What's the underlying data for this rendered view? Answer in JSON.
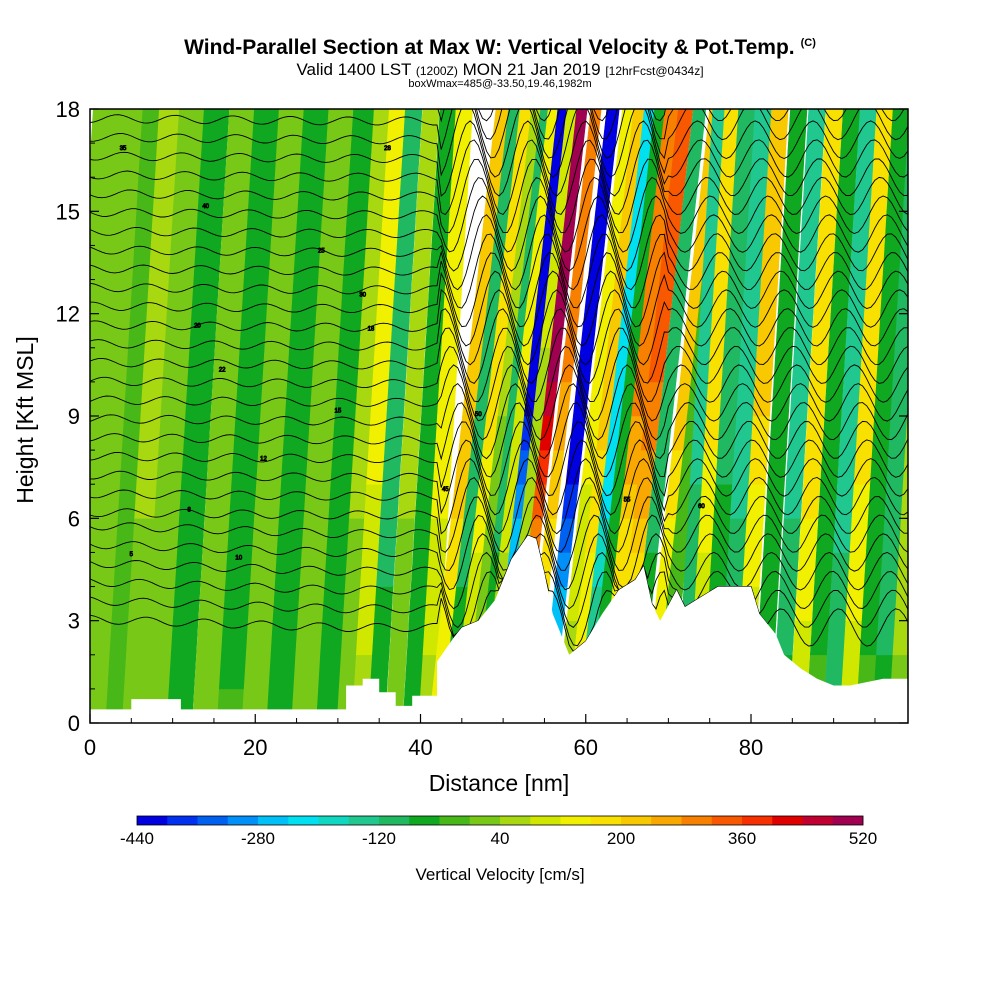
{
  "chart_data": {
    "type": "heatmap",
    "title": "Wind-Parallel Section at Max W: Vertical Velocity & Pot.Temp.",
    "title_mark": "(C)",
    "subtitle_main": "Valid 1400 LST",
    "subtitle_utc": "(1200Z)",
    "subtitle_date": "MON 21 Jan 2019",
    "subtitle_fcst": "[12hrFcst@0434z]",
    "info": "boxWmax=485@-33.50,19.46,1982m",
    "xlabel": "Distance [nm]",
    "ylabel": "Height [Kft MSL]",
    "xlim": [
      0,
      99
    ],
    "ylim": [
      0,
      18
    ],
    "x_ticks": [
      0,
      20,
      40,
      60,
      80
    ],
    "y_ticks": [
      0,
      3,
      6,
      9,
      12,
      15,
      18
    ],
    "colorbar": {
      "label": "Vertical Velocity [cm/s]",
      "min": -440,
      "max": 520,
      "step": 40,
      "tick_values": [
        -440,
        -280,
        -120,
        40,
        200,
        360,
        520
      ],
      "tick_labels": [
        "-440",
        "-280",
        "-120",
        "40",
        "200",
        "360",
        "520"
      ],
      "colors": [
        "#0000e0",
        "#0030f0",
        "#0060f0",
        "#0090f8",
        "#00c0f8",
        "#00e0f0",
        "#10d8c0",
        "#20c890",
        "#20b860",
        "#10a820",
        "#48b818",
        "#78c818",
        "#a8d810",
        "#d0e800",
        "#f0f000",
        "#f8e000",
        "#f8c800",
        "#f8a800",
        "#f88000",
        "#f85800",
        "#f83000",
        "#e00000",
        "#c00030",
        "#a00050"
      ]
    },
    "terrain_kft": [
      [
        0,
        0.4
      ],
      [
        5,
        0.4
      ],
      [
        5,
        0.7
      ],
      [
        11,
        0.7
      ],
      [
        11,
        0.4
      ],
      [
        31,
        0.4
      ],
      [
        31,
        1.1
      ],
      [
        33,
        1.1
      ],
      [
        33,
        1.3
      ],
      [
        35,
        1.3
      ],
      [
        35,
        0.9
      ],
      [
        37,
        0.9
      ],
      [
        37,
        0.5
      ],
      [
        39,
        0.5
      ],
      [
        39,
        0.8
      ],
      [
        42,
        0.8
      ],
      [
        42,
        1.8
      ],
      [
        44,
        2.5
      ],
      [
        45,
        2.8
      ],
      [
        47,
        3.0
      ],
      [
        49,
        3.6
      ],
      [
        51,
        4.8
      ],
      [
        53,
        5.5
      ],
      [
        54,
        5.4
      ],
      [
        55,
        4.4
      ],
      [
        56,
        3.2
      ],
      [
        57,
        2.6
      ],
      [
        58,
        2.0
      ],
      [
        60,
        2.4
      ],
      [
        62,
        3.2
      ],
      [
        64,
        3.9
      ],
      [
        66,
        4.2
      ],
      [
        67,
        4.6
      ],
      [
        68,
        3.5
      ],
      [
        69,
        3.0
      ],
      [
        71,
        3.9
      ],
      [
        72,
        3.4
      ],
      [
        74,
        3.7
      ],
      [
        76,
        4.0
      ],
      [
        78,
        4.0
      ],
      [
        80,
        4.0
      ],
      [
        81,
        3.2
      ],
      [
        83,
        2.6
      ],
      [
        84,
        2.0
      ],
      [
        86,
        1.6
      ],
      [
        88,
        1.3
      ],
      [
        90,
        1.1
      ],
      [
        92,
        1.1
      ],
      [
        94,
        1.2
      ],
      [
        96,
        1.3
      ],
      [
        99,
        1.3
      ]
    ],
    "w_columns_cms": [
      [
        1,
        20
      ],
      [
        3,
        -40
      ],
      [
        5,
        40
      ],
      [
        8,
        0
      ],
      [
        11,
        -80
      ],
      [
        14,
        30
      ],
      [
        17,
        -60
      ],
      [
        20,
        20
      ],
      [
        23,
        -80
      ],
      [
        26,
        30
      ],
      [
        29,
        -70
      ],
      [
        31,
        40
      ],
      [
        33,
        120
      ],
      [
        35,
        -100
      ],
      [
        37,
        40
      ],
      [
        39,
        -80
      ],
      [
        41,
        120
      ],
      [
        43,
        220
      ],
      [
        44.5,
        -120
      ],
      [
        46,
        160
      ],
      [
        47.5,
        40
      ],
      [
        48.5,
        -120
      ],
      [
        50,
        120
      ],
      [
        51.5,
        -440
      ],
      [
        52.5,
        80
      ],
      [
        54,
        520
      ],
      [
        55,
        280
      ],
      [
        56.5,
        -440
      ],
      [
        58,
        120
      ],
      [
        59.5,
        200
      ],
      [
        61,
        -240
      ],
      [
        62.5,
        -80
      ],
      [
        64,
        280
      ],
      [
        66,
        320
      ],
      [
        67.5,
        -120
      ],
      [
        69,
        200
      ],
      [
        71,
        -40
      ],
      [
        72.5,
        -140
      ],
      [
        74,
        180
      ],
      [
        76,
        -100
      ],
      [
        78,
        -160
      ],
      [
        80,
        200
      ],
      [
        82,
        -80
      ],
      [
        84,
        -140
      ],
      [
        86,
        180
      ],
      [
        88,
        -60
      ],
      [
        90,
        -140
      ],
      [
        92,
        160
      ],
      [
        94,
        -60
      ],
      [
        96,
        -120
      ],
      [
        98,
        60
      ]
    ],
    "isentrope_labels": [
      "5",
      "8",
      "10",
      "12",
      "15",
      "18",
      "20",
      "22",
      "25",
      "28",
      "30",
      "35",
      "40",
      "45",
      "50",
      "55",
      "60"
    ]
  }
}
